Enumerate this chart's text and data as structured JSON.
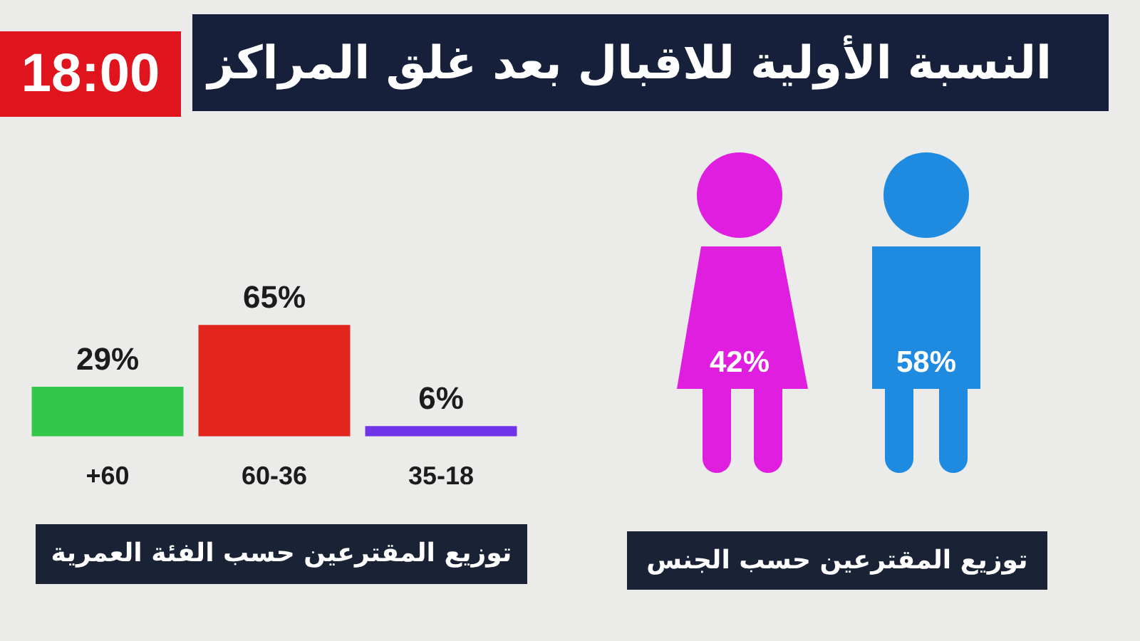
{
  "chart_data": [
    {
      "type": "bar",
      "title": "النسبة الأولية للاقبال بعد غلق المراكز",
      "annotations": [
        "18:00"
      ],
      "xlabel": "توزيع المقترعين حسب الفئة العمرية",
      "categories": [
        "+60",
        "60-36",
        "35-18"
      ],
      "values": [
        29,
        65,
        6
      ],
      "colors": [
        "#34c84a",
        "#e2261e",
        "#7034e8"
      ],
      "value_labels": [
        "29%",
        "65%",
        "6%"
      ]
    },
    {
      "type": "other",
      "xlabel": "توزيع المقترعين حسب الجنس",
      "values": [
        42,
        58
      ],
      "colors": [
        "#e01ee0",
        "#1e8ae0"
      ],
      "value_labels": [
        "42%",
        "58%"
      ]
    }
  ]
}
